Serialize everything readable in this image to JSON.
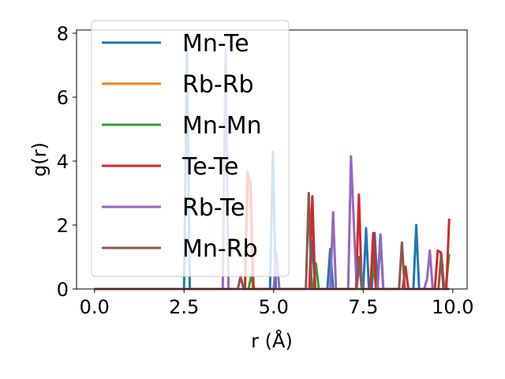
{
  "chart_data": {
    "type": "line",
    "xlabel": "r (Å)",
    "ylabel": "g(r)",
    "xlim": [
      -0.5,
      10.4
    ],
    "ylim": [
      0,
      8.1
    ],
    "xticks": [
      0.0,
      2.5,
      5.0,
      7.5,
      10.0
    ],
    "xtick_labels": [
      "0.0",
      "2.5",
      "5.0",
      "7.5",
      "10.0"
    ],
    "yticks": [
      0,
      2,
      4,
      6,
      8
    ],
    "ytick_labels": [
      "0",
      "2",
      "4",
      "6",
      "8"
    ],
    "grid": false,
    "legend_position": "upper-left",
    "series": [
      {
        "name": "Mn-Te",
        "color": "#1f77b4",
        "x": [
          0.0,
          2.5,
          2.58,
          2.66,
          2.74,
          4.9,
          4.98,
          5.06,
          5.14,
          5.9,
          6.0,
          6.08,
          6.16,
          6.5,
          6.58,
          6.66,
          7.5,
          7.58,
          7.66,
          7.74,
          7.82,
          7.9,
          7.98,
          8.06,
          8.8,
          8.9,
          8.98,
          9.06,
          9.9
        ],
        "y": [
          0,
          0,
          7.6,
          0,
          0,
          0,
          4.3,
          0,
          0,
          0,
          0,
          1.5,
          0,
          0,
          1.25,
          0,
          0,
          1.9,
          0,
          0,
          1.75,
          0,
          1.7,
          0,
          0,
          0,
          2.0,
          0,
          0
        ]
      },
      {
        "name": "Rb-Rb",
        "color": "#ff7f0e",
        "x": [
          0.0,
          4.2,
          4.26,
          4.34,
          4.42,
          9.9
        ],
        "y": [
          0,
          0,
          3.7,
          3.2,
          0,
          0
        ]
      },
      {
        "name": "Mn-Mn",
        "color": "#2ca02c",
        "x": [
          0.0,
          4.3,
          4.38,
          4.46,
          6.1,
          6.18,
          6.26,
          7.7,
          7.78,
          7.86,
          9.8,
          9.9
        ],
        "y": [
          0,
          0,
          0.45,
          0,
          0,
          0.8,
          0,
          0,
          0.9,
          0,
          0,
          1.1
        ]
      },
      {
        "name": "Te-Te",
        "color": "#d62728",
        "x": [
          0.0,
          4.2,
          4.28,
          4.36,
          4.44,
          6.0,
          6.08,
          6.16,
          7.3,
          7.38,
          7.46,
          7.7,
          7.78,
          7.86,
          8.6,
          8.68,
          8.76,
          9.5,
          9.58,
          9.66,
          9.74,
          9.82,
          9.9
        ],
        "y": [
          0,
          0,
          3.6,
          3.3,
          0,
          0,
          2.9,
          0,
          0,
          2.95,
          0,
          0,
          1.75,
          0,
          0,
          0.7,
          0,
          0,
          1.2,
          1.15,
          0,
          0,
          2.2
        ]
      },
      {
        "name": "Rb-Te",
        "color": "#9467bd",
        "x": [
          0.0,
          3.5,
          3.58,
          3.66,
          3.74,
          5.0,
          5.08,
          5.16,
          6.5,
          6.58,
          6.66,
          6.74,
          7.0,
          7.08,
          7.16,
          7.24,
          7.32,
          7.4,
          7.48,
          7.6,
          7.9,
          7.98,
          8.06,
          9.2,
          9.28,
          9.36,
          9.44,
          9.9
        ],
        "y": [
          0,
          0,
          0,
          7.5,
          0,
          0,
          1.1,
          0,
          0,
          0,
          2.4,
          0,
          0,
          0,
          4.15,
          2.0,
          0,
          0.9,
          0,
          0,
          0,
          1.7,
          0,
          0,
          0.3,
          1.2,
          0,
          0
        ]
      },
      {
        "name": "Mn-Rb",
        "color": "#8c564b",
        "x": [
          0.0,
          4.0,
          4.08,
          4.16,
          5.9,
          5.98,
          6.06,
          7.3,
          7.38,
          7.46,
          8.5,
          8.58,
          8.66,
          9.6,
          9.68,
          9.76,
          9.9
        ],
        "y": [
          0,
          0,
          0.4,
          0,
          0,
          3.0,
          0,
          0,
          1.0,
          0,
          0,
          1.45,
          0,
          0,
          1.1,
          0,
          0
        ]
      }
    ]
  }
}
